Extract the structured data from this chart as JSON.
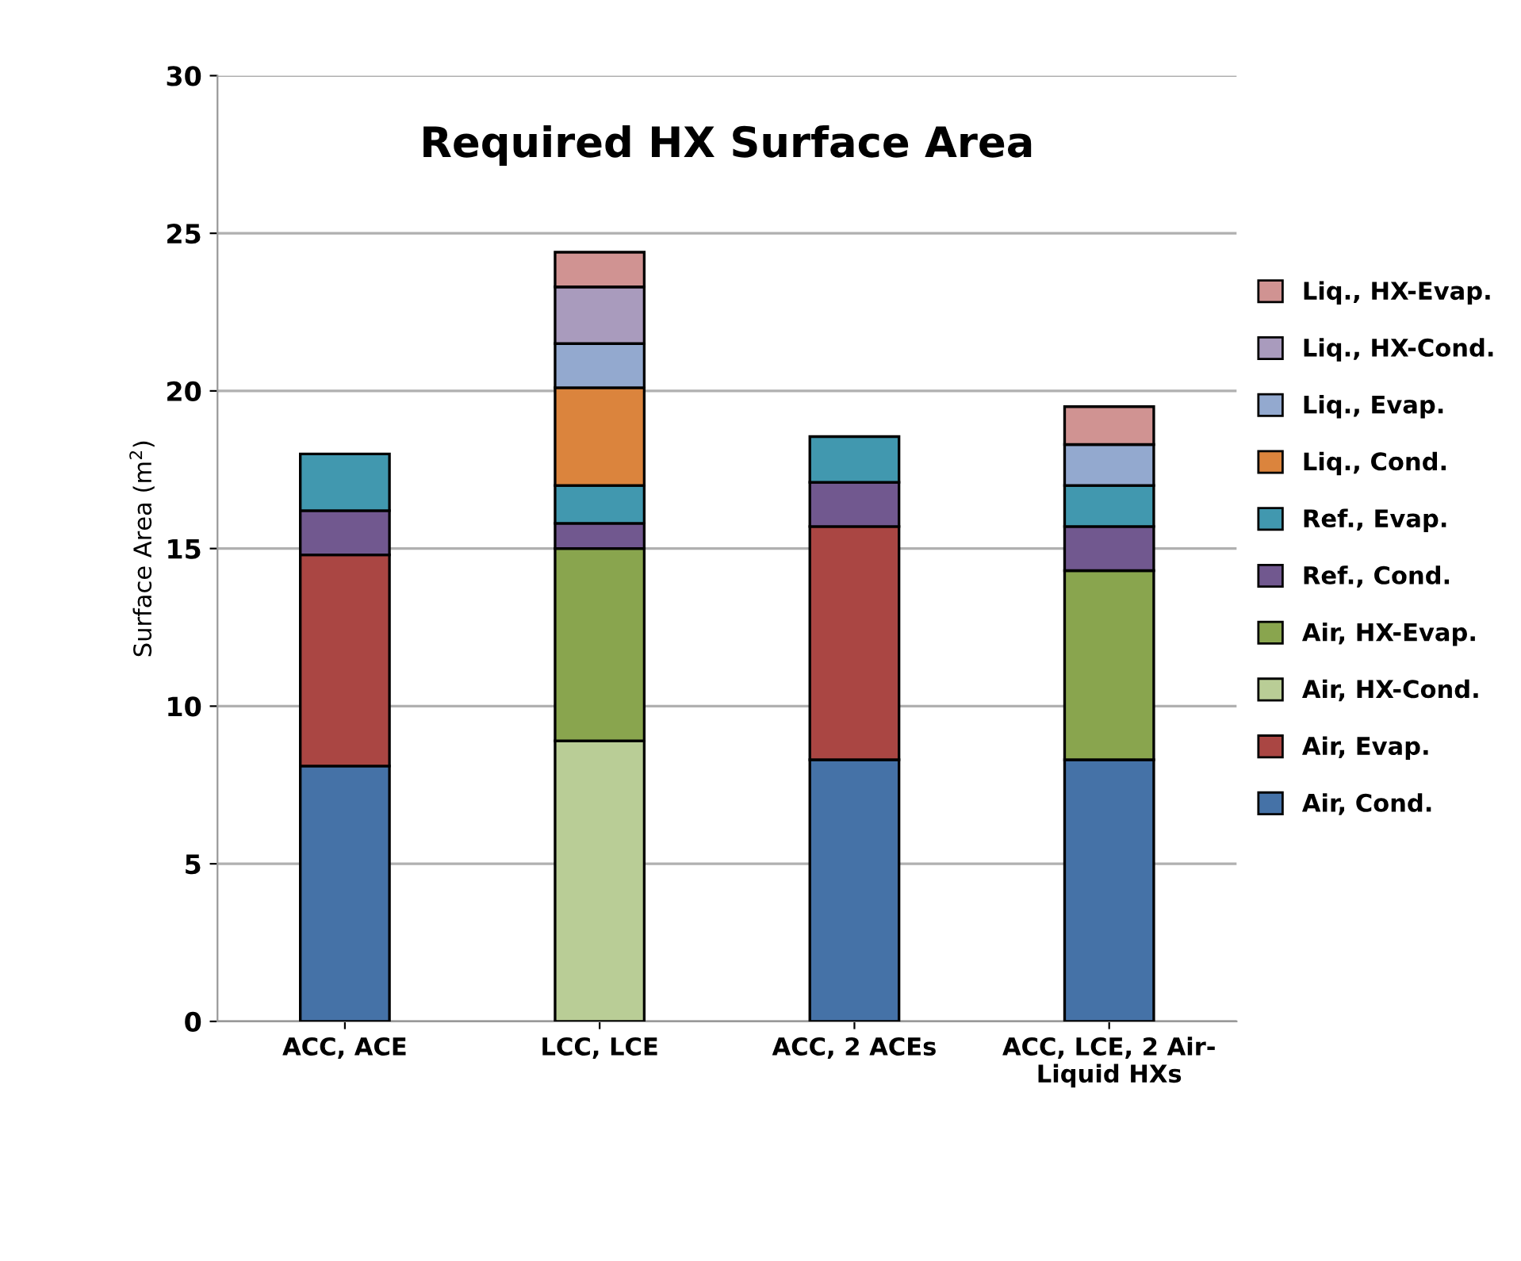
{
  "chart_data": {
    "type": "bar",
    "title": "Required HX Surface Area",
    "ylabel": "Surface Area (m$^{2}$)",
    "stacked": true,
    "categories": [
      "ACC, ACE",
      "LCC, LCE",
      "ACC, 2 ACEs",
      "ACC, LCE, 2 Air-\nLiquid HXs"
    ],
    "series": [
      {
        "name": "Air, Cond.",
        "color": "#4572a7",
        "values": [
          8.1,
          null,
          8.3,
          8.3
        ]
      },
      {
        "name": "Air, Evap.",
        "color": "#aa4643",
        "values": [
          6.7,
          null,
          7.4,
          null
        ]
      },
      {
        "name": "Air, HX-Cond.",
        "color": "#b9cd96",
        "values": [
          null,
          8.9,
          null,
          null
        ]
      },
      {
        "name": "Air, HX-Evap.",
        "color": "#89a54e",
        "values": [
          null,
          6.1,
          null,
          6.0
        ]
      },
      {
        "name": "Ref., Cond.",
        "color": "#71588f",
        "values": [
          1.4,
          0.8,
          1.4,
          1.4
        ]
      },
      {
        "name": "Ref., Evap.",
        "color": "#4198af",
        "values": [
          1.8,
          1.2,
          1.45,
          1.3
        ]
      },
      {
        "name": "Liq., Cond.",
        "color": "#db843d",
        "values": [
          null,
          3.1,
          null,
          null
        ]
      },
      {
        "name": "Liq., Evap.",
        "color": "#93a9cf",
        "values": [
          null,
          1.4,
          null,
          1.3
        ]
      },
      {
        "name": "Liq., HX-Cond.",
        "color": "#a99bbd",
        "values": [
          null,
          1.8,
          null,
          null
        ]
      },
      {
        "name": "Liq., HX-Evap.",
        "color": "#d09392",
        "values": [
          null,
          1.1,
          null,
          1.2
        ]
      }
    ],
    "ylim": [
      0,
      30
    ],
    "yticks": [
      0,
      5,
      10,
      15,
      20,
      25,
      30
    ],
    "grid": "y",
    "legend": "right"
  }
}
